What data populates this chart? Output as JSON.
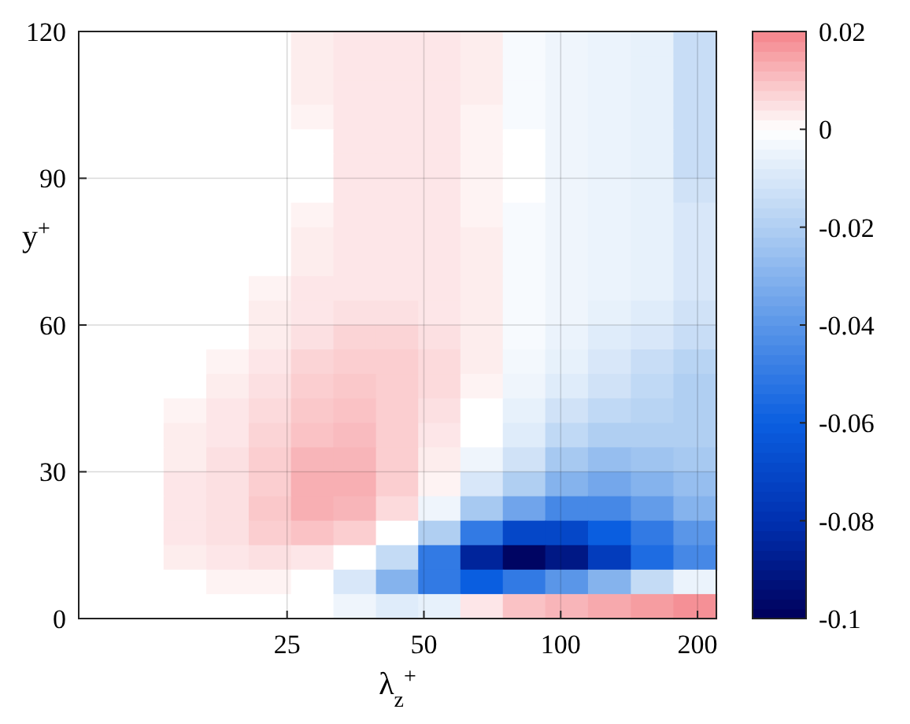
{
  "chart_data": {
    "type": "heatmap",
    "xlabel": "λ$_{z}$$^{+}$",
    "ylabel": "y$^{+}$",
    "x": [
      9.7,
      12,
      14.9,
      18.5,
      22.9,
      28.4,
      35.2,
      43.7,
      54,
      67,
      83,
      103,
      128,
      159,
      197
    ],
    "y": [
      117.5,
      112.5,
      107.5,
      102.5,
      97.5,
      92.5,
      87.5,
      82.5,
      77.5,
      72.5,
      67.5,
      62.5,
      57.5,
      52.5,
      47.5,
      42.5,
      37.5,
      32.5,
      27.5,
      22.5,
      17.5,
      12.5,
      7.5,
      2.5
    ],
    "xlim": [
      8.7,
      220
    ],
    "xticks": [
      25,
      50,
      100,
      200
    ],
    "log": "x",
    "ylim": [
      0,
      120
    ],
    "yticks": [
      0,
      30,
      60,
      90,
      120
    ],
    "grid": true,
    "clim": [
      -0.1,
      0.02
    ],
    "cticks": [
      {
        "value": -0.1,
        "label": "-0.1"
      },
      {
        "value": -0.08,
        "label": "-0.08"
      },
      {
        "value": -0.06,
        "label": "-0.06"
      },
      {
        "value": -0.04,
        "label": "-0.04"
      },
      {
        "value": -0.02,
        "label": "-0.02"
      },
      0,
      0.02
    ],
    "cells": [
      [
        0,
        0,
        0,
        0,
        0,
        0.003,
        0.004,
        0.004,
        0.004,
        0.003,
        -0.002,
        -0.004,
        -0.005,
        -0.006,
        -0.014
      ],
      [
        0,
        0,
        0,
        0,
        0,
        0.003,
        0.004,
        0.004,
        0.004,
        0.003,
        -0.002,
        -0.004,
        -0.005,
        -0.006,
        -0.014
      ],
      [
        0,
        0,
        0,
        0,
        0,
        0.003,
        0.004,
        0.004,
        0.004,
        0.003,
        -0.002,
        -0.004,
        -0.005,
        -0.006,
        -0.014
      ],
      [
        0,
        0,
        0,
        0,
        0,
        0.002,
        0.004,
        0.004,
        0.004,
        0.002,
        -0.002,
        -0.004,
        -0.005,
        -0.006,
        -0.014
      ],
      [
        0,
        0,
        0,
        0,
        0,
        0,
        0.004,
        0.004,
        0.004,
        0.002,
        0,
        -0.004,
        -0.005,
        -0.006,
        -0.014
      ],
      [
        0,
        0,
        0,
        0,
        0,
        0,
        0.004,
        0.004,
        0.004,
        0.002,
        0,
        -0.004,
        -0.005,
        -0.006,
        -0.014
      ],
      [
        0,
        0,
        0,
        0,
        0,
        0,
        0.004,
        0.004,
        0.004,
        0.002,
        0,
        -0.004,
        -0.005,
        -0.006,
        -0.012
      ],
      [
        0,
        0,
        0,
        0,
        0,
        0.002,
        0.004,
        0.004,
        0.004,
        0.002,
        -0.002,
        -0.004,
        -0.005,
        -0.006,
        -0.01
      ],
      [
        0,
        0,
        0,
        0,
        0,
        0.003,
        0.004,
        0.004,
        0.004,
        0.003,
        -0.002,
        -0.004,
        -0.005,
        -0.006,
        -0.01
      ],
      [
        0,
        0,
        0,
        0,
        0,
        0.003,
        0.004,
        0.004,
        0.004,
        0.003,
        -0.002,
        -0.004,
        -0.005,
        -0.006,
        -0.01
      ],
      [
        0,
        0,
        0,
        0,
        0.002,
        0.004,
        0.004,
        0.004,
        0.004,
        0.003,
        -0.002,
        -0.004,
        -0.005,
        -0.006,
        -0.01
      ],
      [
        0,
        0,
        0,
        0,
        0.003,
        0.004,
        0.005,
        0.005,
        0.004,
        0.003,
        -0.002,
        -0.004,
        -0.006,
        -0.008,
        -0.012
      ],
      [
        0,
        0,
        0,
        0,
        0.003,
        0.005,
        0.007,
        0.007,
        0.005,
        0.003,
        -0.002,
        -0.005,
        -0.008,
        -0.01,
        -0.014
      ],
      [
        0,
        0,
        0,
        0.002,
        0.004,
        0.007,
        0.008,
        0.008,
        0.006,
        0.003,
        -0.003,
        -0.006,
        -0.01,
        -0.014,
        -0.018
      ],
      [
        0,
        0,
        0,
        0.003,
        0.005,
        0.008,
        0.009,
        0.008,
        0.006,
        0.002,
        -0.004,
        -0.008,
        -0.012,
        -0.016,
        -0.02
      ],
      [
        0,
        0,
        0.002,
        0.004,
        0.006,
        0.009,
        0.01,
        0.008,
        0.005,
        0,
        -0.006,
        -0.012,
        -0.016,
        -0.018,
        -0.02
      ],
      [
        0,
        0,
        0.003,
        0.004,
        0.007,
        0.01,
        0.011,
        0.008,
        0.004,
        0,
        -0.008,
        -0.016,
        -0.02,
        -0.02,
        -0.02
      ],
      [
        0,
        0,
        0.003,
        0.005,
        0.008,
        0.012,
        0.012,
        0.008,
        0.003,
        -0.004,
        -0.012,
        -0.022,
        -0.026,
        -0.024,
        -0.022
      ],
      [
        0,
        0,
        0.004,
        0.005,
        0.008,
        0.013,
        0.013,
        0.008,
        0.002,
        -0.01,
        -0.02,
        -0.03,
        -0.034,
        -0.03,
        -0.026
      ],
      [
        0,
        0,
        0.004,
        0.005,
        0.009,
        0.013,
        0.012,
        0.006,
        -0.004,
        -0.022,
        -0.035,
        -0.045,
        -0.045,
        -0.038,
        -0.03
      ],
      [
        0,
        0,
        0.004,
        0.005,
        0.008,
        0.01,
        0.008,
        0,
        -0.02,
        -0.05,
        -0.07,
        -0.07,
        -0.06,
        -0.05,
        -0.04
      ],
      [
        0,
        0,
        0.003,
        0.004,
        0.005,
        0.004,
        0,
        -0.015,
        -0.05,
        -0.085,
        -0.098,
        -0.09,
        -0.075,
        -0.055,
        -0.045
      ],
      [
        0,
        0,
        0,
        0.002,
        0.002,
        0,
        -0.01,
        -0.03,
        -0.05,
        -0.06,
        -0.05,
        -0.04,
        -0.03,
        -0.015,
        -0.005
      ],
      [
        0,
        0,
        0,
        0,
        0,
        0,
        -0.004,
        -0.008,
        -0.006,
        0.004,
        0.01,
        0.012,
        0.014,
        0.016,
        0.018
      ]
    ]
  }
}
